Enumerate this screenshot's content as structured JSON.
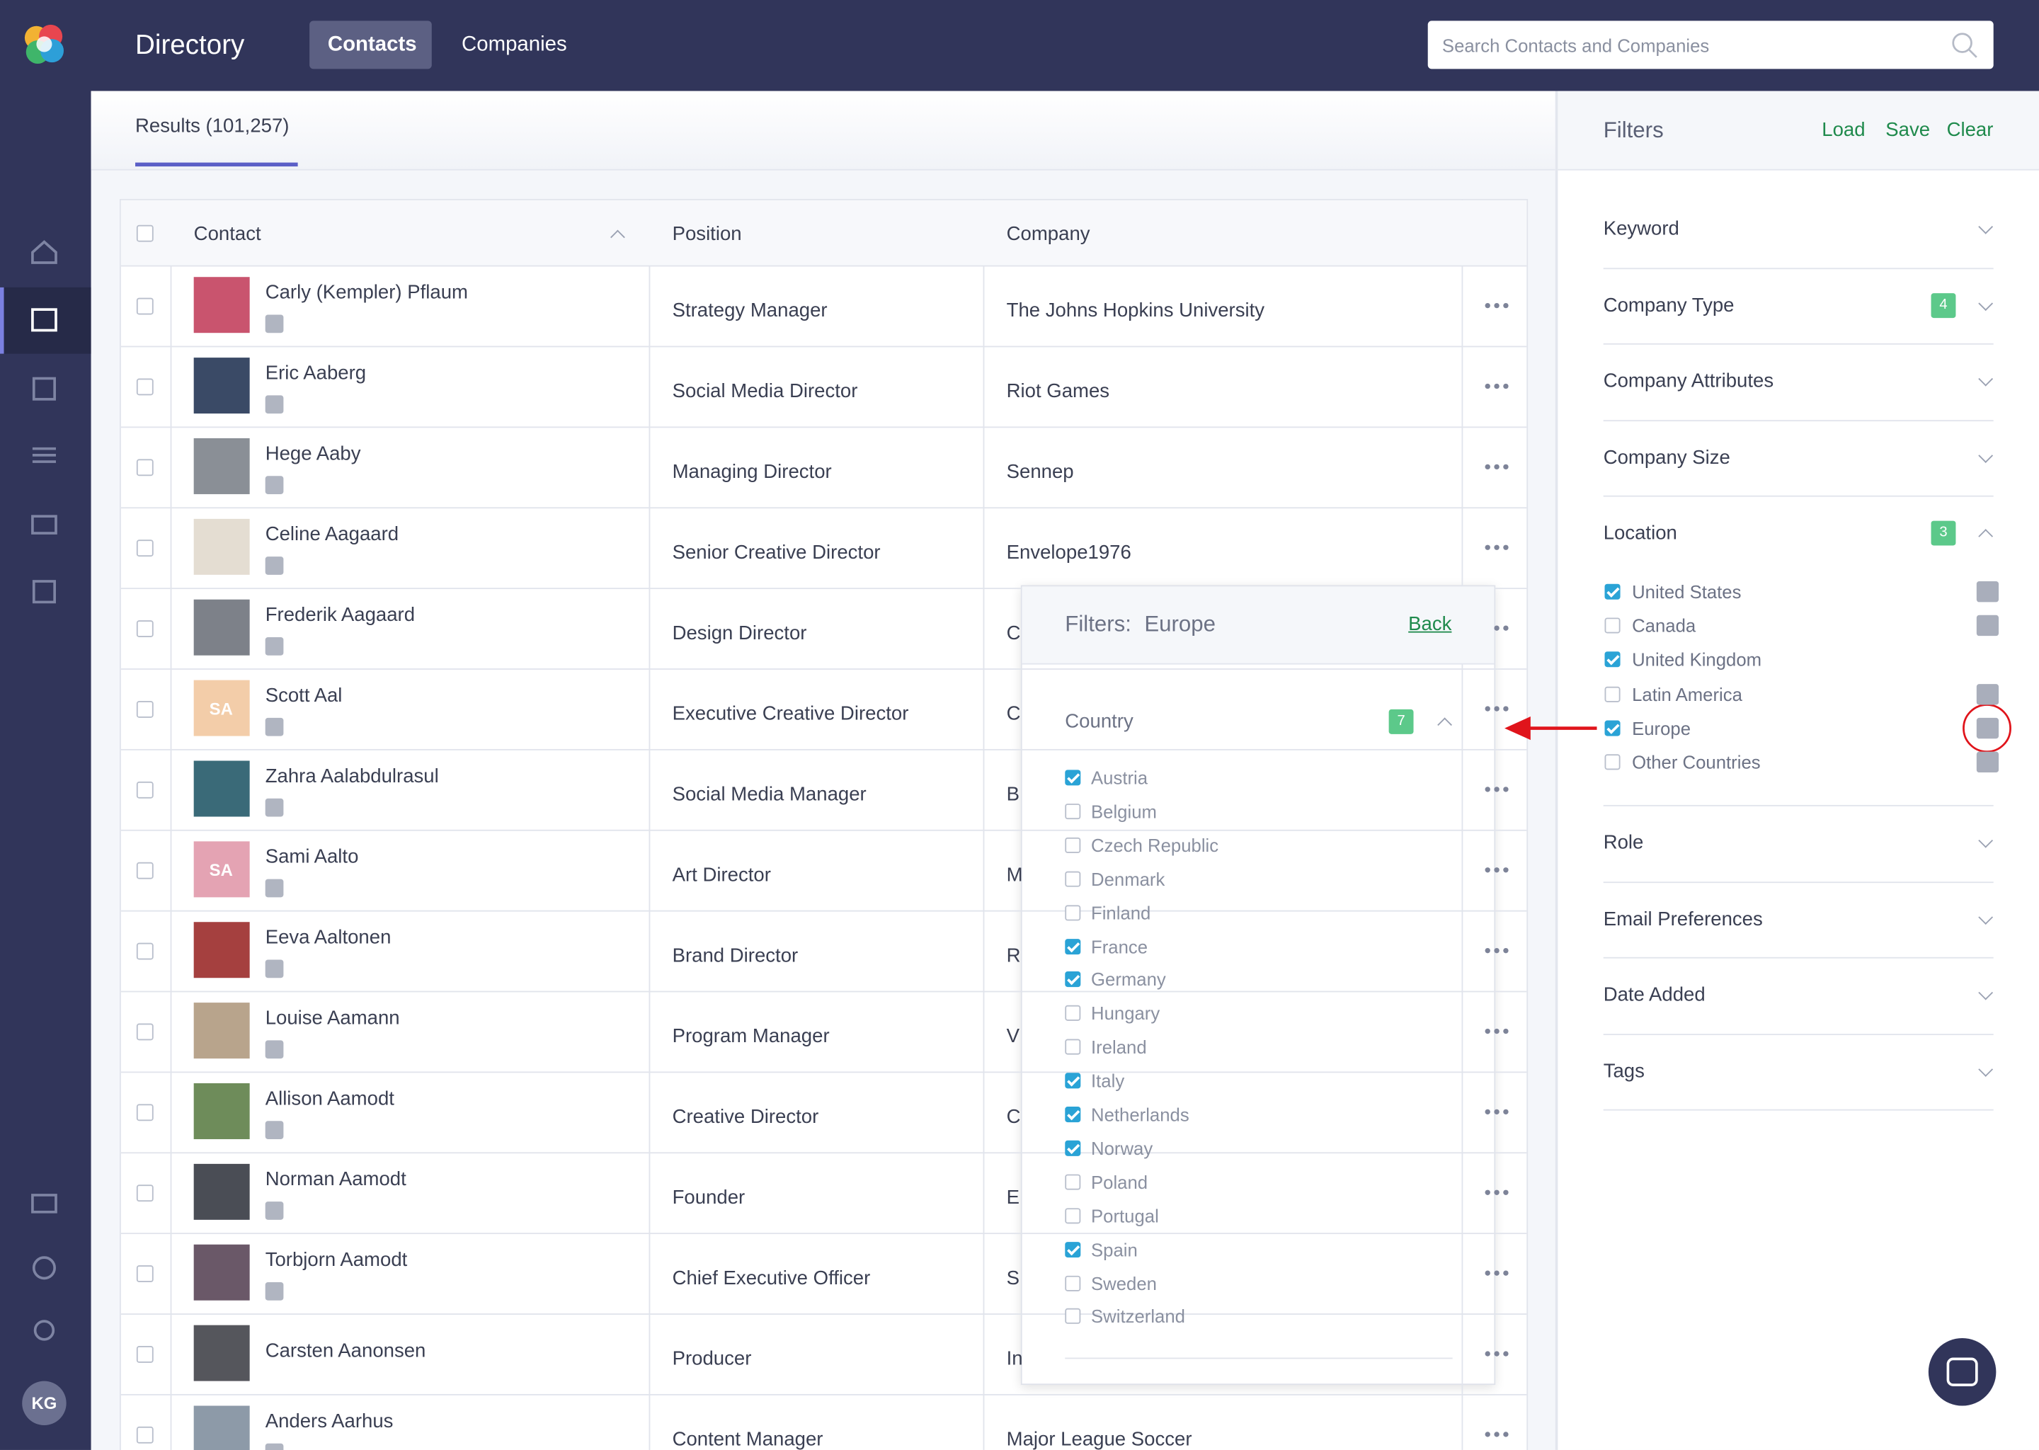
{
  "header": {
    "brand": "Directory",
    "tabs": [
      "Contacts",
      "Companies"
    ],
    "search_placeholder": "Search Contacts and Companies"
  },
  "sidebar": {
    "user_initials": "KG"
  },
  "results": {
    "tab": "Results (101,257)"
  },
  "table": {
    "columns": [
      "Contact",
      "Position",
      "Company"
    ],
    "rows": [
      {
        "name": "Carly (Kempler) Pflaum",
        "position": "Strategy Manager",
        "company": "The Johns Hopkins University"
      },
      {
        "name": "Eric Aaberg",
        "position": "Social Media Director",
        "company": "Riot Games"
      },
      {
        "name": "Hege Aaby",
        "position": "Managing Director",
        "company": "Sennep"
      },
      {
        "name": "Celine Aagaard",
        "position": "Senior Creative Director",
        "company": "Envelope1976"
      },
      {
        "name": "Frederik Aagaard",
        "position": "Design Director",
        "company": "C"
      },
      {
        "name": "Scott Aal",
        "initials": "SA",
        "position": "Executive Creative Director",
        "company": "C"
      },
      {
        "name": "Zahra Aalabdulrasul",
        "position": "Social Media Manager",
        "company": "B"
      },
      {
        "name": "Sami Aalto",
        "initials": "SA",
        "position": "Art Director",
        "company": "M"
      },
      {
        "name": "Eeva Aaltonen",
        "position": "Brand Director",
        "company": "R"
      },
      {
        "name": "Louise Aamann",
        "position": "Program Manager",
        "company": "V"
      },
      {
        "name": "Allison Aamodt",
        "position": "Creative Director",
        "company": "C"
      },
      {
        "name": "Norman Aamodt",
        "position": "Founder",
        "company": "E"
      },
      {
        "name": "Torbjorn Aamodt",
        "position": "Chief Executive Officer",
        "company": "S"
      },
      {
        "name": "Carsten Aanonsen",
        "position": "Producer",
        "company": "In"
      },
      {
        "name": "Anders Aarhus",
        "position": "Content Manager",
        "company": "Major League Soccer"
      }
    ]
  },
  "filters": {
    "title": "Filters",
    "actions": [
      "Load",
      "Save",
      "Clear"
    ],
    "sections": [
      {
        "label": "Keyword"
      },
      {
        "label": "Company Type",
        "badge": "4"
      },
      {
        "label": "Company Attributes"
      },
      {
        "label": "Company Size"
      },
      {
        "label": "Location",
        "badge": "3",
        "expanded": true,
        "options": [
          {
            "label": "United States",
            "checked": true
          },
          {
            "label": "Canada",
            "checked": false
          },
          {
            "label": "United Kingdom",
            "checked": true
          },
          {
            "label": "Latin America",
            "checked": false
          },
          {
            "label": "Europe",
            "checked": true
          },
          {
            "label": "Other Countries",
            "checked": false
          }
        ]
      },
      {
        "label": "Role"
      },
      {
        "label": "Email Preferences"
      },
      {
        "label": "Date Added"
      },
      {
        "label": "Tags"
      }
    ]
  },
  "popup": {
    "title": "Filters:",
    "region": "Europe",
    "back": "Back",
    "section": "Country",
    "badge": "7",
    "countries": [
      {
        "label": "Austria",
        "checked": true
      },
      {
        "label": "Belgium",
        "checked": false
      },
      {
        "label": "Czech Republic",
        "checked": false
      },
      {
        "label": "Denmark",
        "checked": false
      },
      {
        "label": "Finland",
        "checked": false
      },
      {
        "label": "France",
        "checked": true
      },
      {
        "label": "Germany",
        "checked": true
      },
      {
        "label": "Hungary",
        "checked": false
      },
      {
        "label": "Ireland",
        "checked": false
      },
      {
        "label": "Italy",
        "checked": true
      },
      {
        "label": "Netherlands",
        "checked": true
      },
      {
        "label": "Norway",
        "checked": true
      },
      {
        "label": "Poland",
        "checked": false
      },
      {
        "label": "Portugal",
        "checked": false
      },
      {
        "label": "Spain",
        "checked": true
      },
      {
        "label": "Sweden",
        "checked": false
      },
      {
        "label": "Switzerland",
        "checked": false
      }
    ]
  }
}
